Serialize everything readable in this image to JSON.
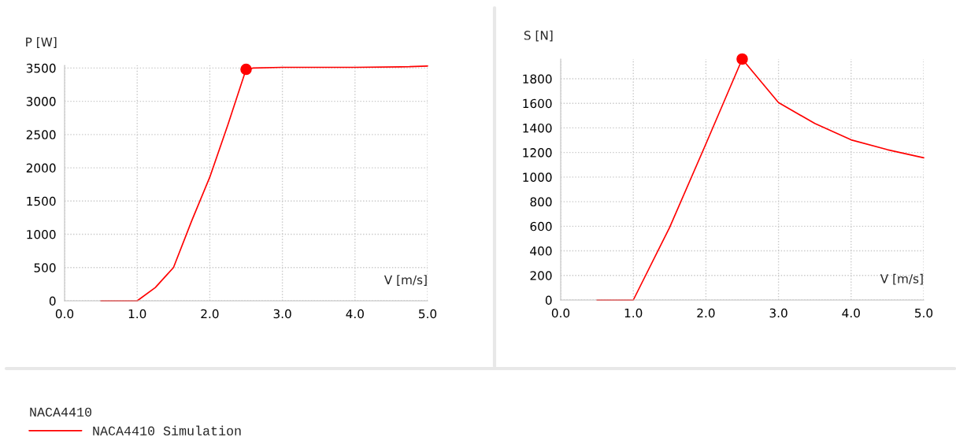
{
  "chart_data": [
    {
      "type": "line",
      "xlabel": "V [m/s]",
      "ylabel": "P [W]",
      "series": [
        {
          "name": "NACA4410 Simulation",
          "color": "#ff0000",
          "x": [
            0.5,
            1.0,
            1.25,
            1.4,
            1.5,
            1.75,
            2.0,
            2.25,
            2.5,
            2.6,
            3.0,
            4.0,
            4.75,
            5.0
          ],
          "values": [
            0,
            0,
            200,
            380,
            500,
            1200,
            1860,
            2650,
            3480,
            3500,
            3510,
            3510,
            3520,
            3530
          ]
        },
        {
          "type": "scatter",
          "color": "#ff0000",
          "marker": "circle",
          "x": [
            2.5
          ],
          "values": [
            3480
          ]
        }
      ],
      "xlim": [
        0,
        5
      ],
      "xticks": [
        {
          "value": 0,
          "label": "0.0"
        },
        {
          "value": 1,
          "label": "1.0"
        },
        {
          "value": 2,
          "label": "2.0"
        },
        {
          "value": 3,
          "label": "3.0"
        },
        {
          "value": 4,
          "label": "4.0"
        },
        {
          "value": 5,
          "label": "5.0"
        }
      ],
      "ylim": [
        0,
        3540
      ],
      "yticks": [
        0,
        500,
        1000,
        1500,
        2000,
        2500,
        3000,
        3500
      ],
      "grid": true,
      "legend": "bottom",
      "legend_title": "NACA4410"
    },
    {
      "type": "line",
      "xlabel": "V [m/s]",
      "ylabel": "S [N]",
      "series": [
        {
          "color": "#ff0000",
          "x": [
            0.5,
            1.0,
            1.5,
            2.0,
            2.5,
            3.0,
            3.5,
            4.0,
            4.5,
            5.0
          ],
          "values": [
            0,
            0,
            590,
            1270,
            1960,
            1606,
            1436,
            1303,
            1223,
            1157
          ]
        },
        {
          "type": "scatter",
          "color": "#ff0000",
          "marker": "circle",
          "x": [
            2.5
          ],
          "values": [
            1960
          ]
        }
      ],
      "xlim": [
        0,
        5
      ],
      "xticks": [
        {
          "value": 0,
          "label": "0.0"
        },
        {
          "value": 1,
          "label": "1.0"
        },
        {
          "value": 2,
          "label": "2.0"
        },
        {
          "value": 3,
          "label": "3.0"
        },
        {
          "value": 4,
          "label": "4.0"
        },
        {
          "value": 5,
          "label": "5.0"
        }
      ],
      "ylim": [
        0,
        1960
      ],
      "yticks": [
        0,
        200,
        400,
        600,
        800,
        1000,
        1200,
        1400,
        1600,
        1800
      ],
      "grid": true
    }
  ]
}
